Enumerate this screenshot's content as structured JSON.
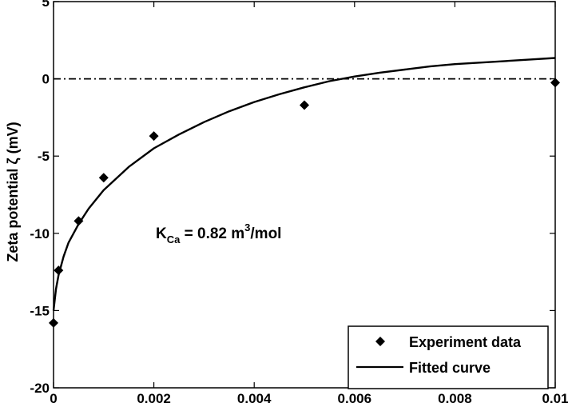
{
  "chart_data": {
    "type": "scatter",
    "title": "",
    "xlabel": "",
    "ylabel": "Zeta potential ζ (mV)",
    "xlim": [
      0,
      0.01
    ],
    "ylim": [
      -20,
      5
    ],
    "x_ticks": [
      "0",
      "0.002",
      "0.004",
      "0.006",
      "0.008",
      "0.01"
    ],
    "y_ticks": [
      "5",
      "0",
      "-5",
      "-10",
      "-15",
      "-20"
    ],
    "grid": false,
    "legend_position": "bottom-right",
    "series": [
      {
        "name": "Experiment data",
        "type": "scatter",
        "marker": "diamond",
        "color": "#000000",
        "x": [
          0,
          0.0001,
          0.0005,
          0.001,
          0.002,
          0.005,
          0.01
        ],
        "y": [
          -15.8,
          -12.4,
          -9.2,
          -6.4,
          -3.7,
          -1.7,
          -0.25
        ]
      },
      {
        "name": "Fitted curve",
        "type": "line",
        "color": "#000000",
        "x": [
          0,
          5e-05,
          0.0001,
          0.0002,
          0.0003,
          0.0005,
          0.0007,
          0.001,
          0.0015,
          0.002,
          0.0025,
          0.003,
          0.0035,
          0.004,
          0.0045,
          0.005,
          0.0055,
          0.006,
          0.0065,
          0.007,
          0.0075,
          0.008,
          0.0085,
          0.009,
          0.0095,
          0.01
        ],
        "y": [
          -15.0,
          -13.6,
          -12.7,
          -11.5,
          -10.6,
          -9.4,
          -8.4,
          -7.2,
          -5.7,
          -4.5,
          -3.6,
          -2.8,
          -2.1,
          -1.5,
          -1.0,
          -0.55,
          -0.15,
          0.15,
          0.4,
          0.6,
          0.8,
          0.95,
          1.05,
          1.15,
          1.25,
          1.35
        ]
      },
      {
        "type": "reference-line",
        "style": "dash-dot",
        "color": "#000000",
        "y": 0
      }
    ],
    "annotation": {
      "main": "K",
      "subscript": "Ca",
      "value": " = 0.82 m",
      "superscript": "3",
      "unit": "/mol"
    }
  }
}
